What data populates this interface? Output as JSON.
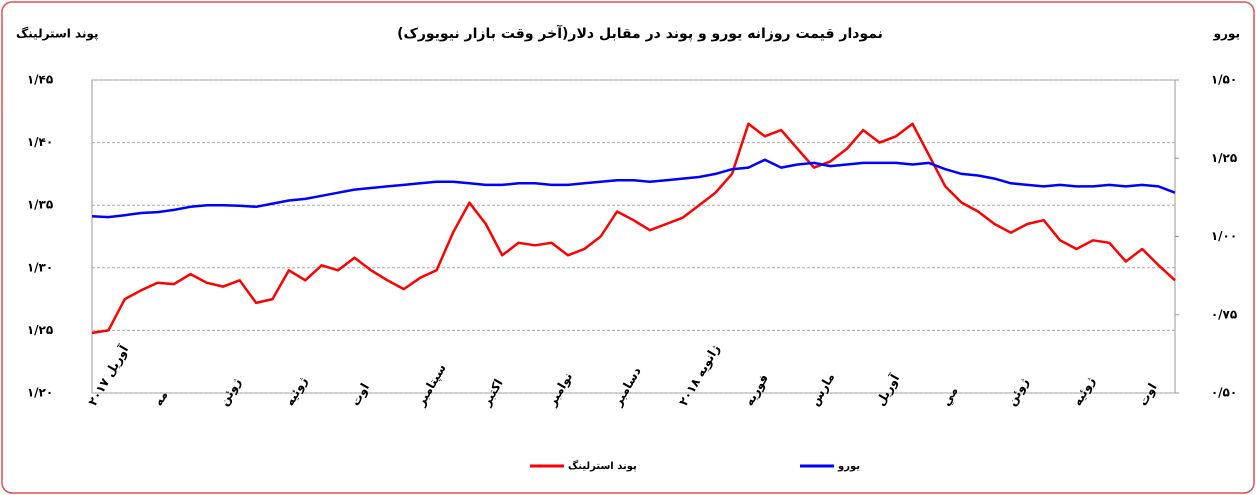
{
  "chart_data": {
    "type": "line",
    "title": "نمودار قیمت روزانه  یورو و پوند در مقابل دلار(آخر وقت بازار نیویورک)",
    "y_label": "پوند استرلینگ",
    "y2_label": "یورو",
    "categories": [
      "آوریل ۲۰۱۷",
      null,
      null,
      null,
      "مه",
      null,
      null,
      null,
      "ژوئن",
      null,
      null,
      null,
      "ژوئیه",
      null,
      null,
      null,
      "اوت",
      null,
      null,
      null,
      "سپتامبر",
      null,
      null,
      null,
      "اکتبر",
      null,
      null,
      null,
      "نوامبر",
      null,
      null,
      null,
      "دسامبر",
      null,
      null,
      null,
      "ژانویه ۲۰۱۸",
      null,
      null,
      null,
      "فوریه",
      null,
      null,
      null,
      "مارس",
      null,
      null,
      null,
      "آوریل",
      null,
      null,
      null,
      "مي",
      null,
      null,
      null,
      "ژوئن",
      null,
      null,
      null,
      "ژوئیه",
      null,
      null,
      null,
      "اوت",
      null,
      null
    ],
    "series": [
      {
        "name": "پوند استرلینگ",
        "color": "#ff0000",
        "axis": "y",
        "values": [
          1.248,
          1.25,
          1.275,
          1.282,
          1.288,
          1.287,
          1.295,
          1.288,
          1.285,
          1.29,
          1.272,
          1.275,
          1.298,
          1.29,
          1.302,
          1.298,
          1.308,
          1.298,
          1.29,
          1.283,
          1.292,
          1.298,
          1.328,
          1.352,
          1.335,
          1.31,
          1.32,
          1.318,
          1.32,
          1.31,
          1.315,
          1.325,
          1.345,
          1.338,
          1.33,
          1.335,
          1.34,
          1.35,
          1.36,
          1.375,
          1.415,
          1.405,
          1.41,
          1.395,
          1.38,
          1.385,
          1.395,
          1.41,
          1.4,
          1.405,
          1.415,
          1.39,
          1.365,
          1.352,
          1.345,
          1.335,
          1.328,
          1.335,
          1.338,
          1.322,
          1.315,
          1.322,
          1.32,
          1.305,
          1.315,
          1.302,
          1.29
        ]
      },
      {
        "name": "یورو",
        "color": "#0000ff",
        "axis": "y2",
        "values": [
          1.065,
          1.062,
          1.068,
          1.075,
          1.078,
          1.085,
          1.095,
          1.1,
          1.1,
          1.098,
          1.095,
          1.105,
          1.115,
          1.12,
          1.13,
          1.14,
          1.15,
          1.155,
          1.16,
          1.165,
          1.17,
          1.175,
          1.175,
          1.17,
          1.165,
          1.165,
          1.17,
          1.17,
          1.165,
          1.165,
          1.17,
          1.175,
          1.18,
          1.18,
          1.175,
          1.18,
          1.185,
          1.19,
          1.2,
          1.215,
          1.22,
          1.245,
          1.22,
          1.23,
          1.235,
          1.225,
          1.23,
          1.235,
          1.235,
          1.235,
          1.23,
          1.235,
          1.215,
          1.2,
          1.195,
          1.185,
          1.17,
          1.165,
          1.16,
          1.165,
          1.16,
          1.16,
          1.165,
          1.16,
          1.165,
          1.16,
          1.14
        ]
      }
    ],
    "ylim": [
      1.2,
      1.45
    ],
    "yticks": [
      {
        "value": 1.2,
        "label": "۱/۲۰"
      },
      {
        "value": 1.25,
        "label": "۱/۲۵"
      },
      {
        "value": 1.3,
        "label": "۱/۳۰"
      },
      {
        "value": 1.35,
        "label": "۱/۳۵"
      },
      {
        "value": 1.4,
        "label": "۱/۴۰"
      },
      {
        "value": 1.45,
        "label": "۱/۴۵"
      }
    ],
    "y2lim": [
      0.5,
      1.5
    ],
    "y2ticks": [
      {
        "value": 0.5,
        "label": "۰/۵۰"
      },
      {
        "value": 0.75,
        "label": "۰/۷۵"
      },
      {
        "value": 1.0,
        "label": "۱/۰۰"
      },
      {
        "value": 1.25,
        "label": "۱/۲۵"
      },
      {
        "value": 1.5,
        "label": "۱/۵۰"
      }
    ],
    "grid": true
  }
}
